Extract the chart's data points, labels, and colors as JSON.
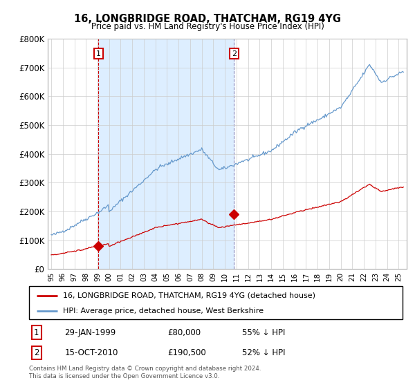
{
  "title": "16, LONGBRIDGE ROAD, THATCHAM, RG19 4YG",
  "subtitle": "Price paid vs. HM Land Registry's House Price Index (HPI)",
  "ylim": [
    0,
    800000
  ],
  "yticks": [
    0,
    100000,
    200000,
    300000,
    400000,
    500000,
    600000,
    700000,
    800000
  ],
  "ytick_labels": [
    "£0",
    "£100K",
    "£200K",
    "£300K",
    "£400K",
    "£500K",
    "£600K",
    "£700K",
    "£800K"
  ],
  "sale1_date": 1999.08,
  "sale1_price": 80000,
  "sale2_date": 2010.79,
  "sale2_price": 190500,
  "house_color": "#cc0000",
  "hpi_color": "#6699cc",
  "vline1_color": "#cc0000",
  "vline2_color": "#8888bb",
  "shade_color": "#ddeeff",
  "legend_house": "16, LONGBRIDGE ROAD, THATCHAM, RG19 4YG (detached house)",
  "legend_hpi": "HPI: Average price, detached house, West Berkshire",
  "footnote": "Contains HM Land Registry data © Crown copyright and database right 2024.\nThis data is licensed under the Open Government Licence v3.0.",
  "background_color": "#ffffff",
  "grid_color": "#cccccc",
  "xlim_left": 1994.7,
  "xlim_right": 2025.7
}
